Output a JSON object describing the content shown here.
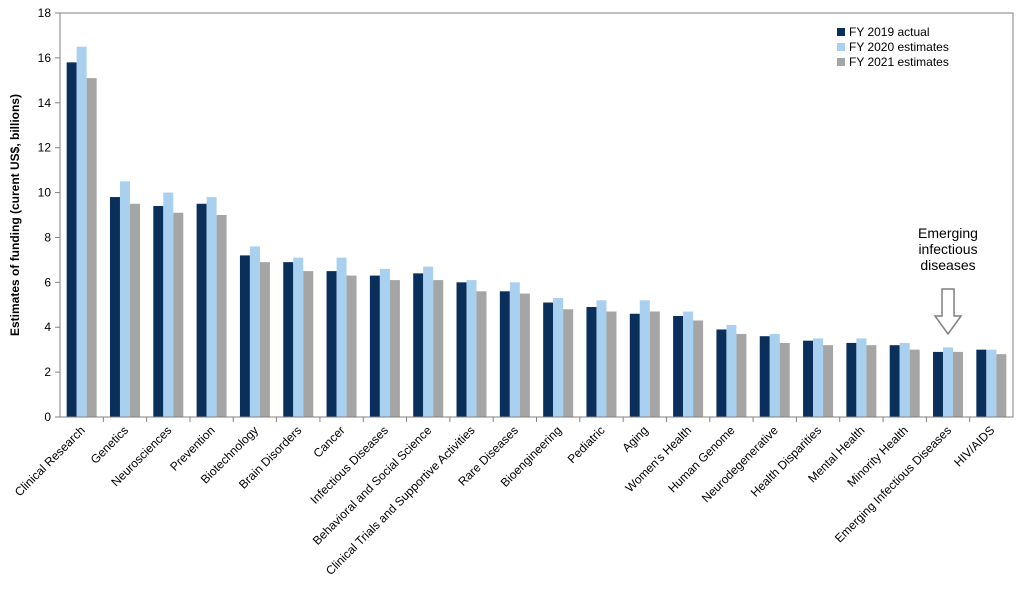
{
  "chart_data": {
    "type": "bar",
    "title": "",
    "xlabel": "",
    "ylabel": "Estimates of funding (curent US$, billions)",
    "ylim": [
      0,
      18
    ],
    "yticks": [
      0,
      2,
      4,
      6,
      8,
      10,
      12,
      14,
      16,
      18
    ],
    "grid": false,
    "legend_position": "top-right",
    "categories": [
      "Clinical Research",
      "Genetics",
      "Neurosciences",
      "Prevention",
      "Biotechnology",
      "Brain Disorders",
      "Cancer",
      "Infectious Diseases",
      "Behavioral and Social Science",
      "Clinical Trials and Supportive Activities",
      "Rare Diseases",
      "Bioengineering",
      "Pediatric",
      "Aging",
      "Women's Health",
      "Human Genome",
      "Neurodegenerative",
      "Health Disparities",
      "Mental Health",
      "Minority Health",
      "Emerging Infectious Diseases",
      "HIV/AIDS"
    ],
    "series": [
      {
        "name": "FY 2019 actual",
        "color": "#0b2f5b",
        "values": [
          15.8,
          9.8,
          9.4,
          9.5,
          7.2,
          6.9,
          6.5,
          6.3,
          6.4,
          6.0,
          5.6,
          5.1,
          4.9,
          4.6,
          4.5,
          3.9,
          3.6,
          3.4,
          3.3,
          3.2,
          2.9,
          3.0
        ]
      },
      {
        "name": "FY 2020 estimates",
        "color": "#a9d0ef",
        "values": [
          16.5,
          10.5,
          10.0,
          9.8,
          7.6,
          7.1,
          7.1,
          6.6,
          6.7,
          6.1,
          6.0,
          5.3,
          5.2,
          5.2,
          4.7,
          4.1,
          3.7,
          3.5,
          3.5,
          3.3,
          3.1,
          3.0
        ]
      },
      {
        "name": "FY 2021 estimates",
        "color": "#a5a5a5",
        "values": [
          15.1,
          9.5,
          9.1,
          9.0,
          6.9,
          6.5,
          6.3,
          6.1,
          6.1,
          5.6,
          5.5,
          4.8,
          4.7,
          4.7,
          4.3,
          3.7,
          3.3,
          3.2,
          3.2,
          3.0,
          2.9,
          2.8
        ]
      }
    ],
    "annotation": {
      "lines": [
        "Emerging",
        "infectious",
        "diseases"
      ],
      "category": "Emerging Infectious Diseases"
    }
  }
}
